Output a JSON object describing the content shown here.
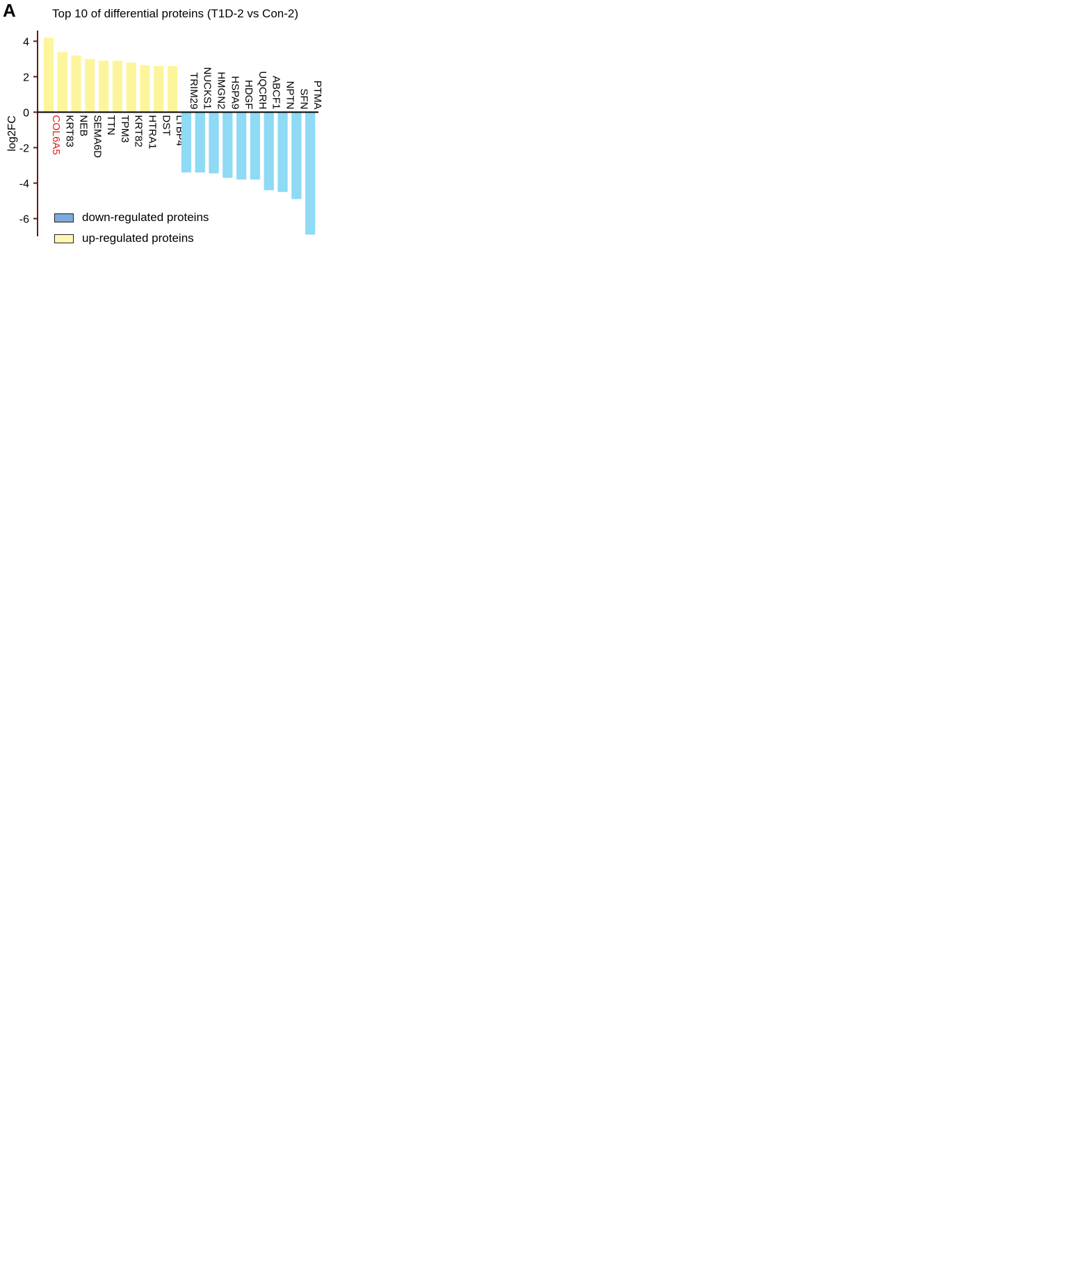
{
  "panel": {
    "letter": "A",
    "title": "Top 10 of differential proteins (T1D-2 vs Con-2)"
  },
  "colors": {
    "up": "#fdf59b",
    "down": "#8fdaf5",
    "highlight": "#e0201b",
    "legend_up": "#fcf8b4",
    "legend_down": "#7fa9dc"
  },
  "legend": [
    {
      "label": "down-regulated proteins",
      "color": "#7fa9dc"
    },
    {
      "label": "up-regulated proteins",
      "color": "#fcf8b4"
    }
  ],
  "chart_data": {
    "type": "bar",
    "title": "Top 10 of differential proteins (T1D-2 vs Con-2)",
    "xlabel": "",
    "ylabel": "log2FC",
    "ylim": [
      -7,
      4.6
    ],
    "yticks": [
      4,
      2,
      0,
      -2,
      -4,
      -6
    ],
    "categories": [
      "COL6A5",
      "KRT83",
      "NEB",
      "SEMA6D",
      "TTN",
      "TPM3",
      "KRT82",
      "HTRA1",
      "DST",
      "LTBP4",
      "TRIM29",
      "NUCKS1",
      "HMGN2",
      "HSPA9",
      "HDGF",
      "UQCRH",
      "ABCF1",
      "NPTN",
      "SFN",
      "PTMA"
    ],
    "values": [
      4.2,
      3.4,
      3.2,
      3.0,
      2.9,
      2.9,
      2.8,
      2.65,
      2.6,
      2.6,
      -3.4,
      -3.4,
      -3.45,
      -3.7,
      -3.8,
      -3.8,
      -4.4,
      -4.5,
      -4.9,
      -6.9
    ],
    "highlighted": [
      "COL6A5"
    ]
  }
}
